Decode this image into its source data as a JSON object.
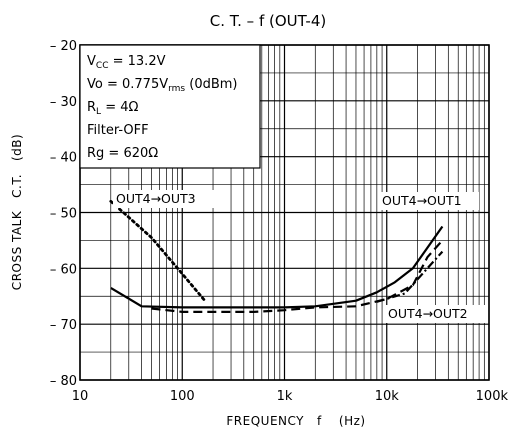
{
  "chart_data": {
    "type": "line",
    "title": "C. T. – f (OUT-4)",
    "xlabel": "FREQUENCY   f    (Hz)",
    "ylabel": "CROSS TALK   C.T.   (dB)",
    "xscale": "log",
    "xlim": [
      10,
      100000
    ],
    "ylim": [
      -80,
      -20
    ],
    "xticks": [
      {
        "value": 10,
        "label": "10"
      },
      {
        "value": 100,
        "label": "100"
      },
      {
        "value": 1000,
        "label": "1k"
      },
      {
        "value": 10000,
        "label": "10k"
      },
      {
        "value": 100000,
        "label": "100k"
      }
    ],
    "yticks": [
      {
        "value": -20,
        "label": "– 20"
      },
      {
        "value": -30,
        "label": "– 30"
      },
      {
        "value": -40,
        "label": "– 40"
      },
      {
        "value": -50,
        "label": "– 50"
      },
      {
        "value": -60,
        "label": "– 60"
      },
      {
        "value": -70,
        "label": "– 70"
      },
      {
        "value": -80,
        "label": "– 80"
      }
    ],
    "grid": true,
    "conditions": [
      {
        "main": "V",
        "sub": "CC",
        "rest": " = 13.2V"
      },
      {
        "main": "Vo = 0.775V",
        "sub": "rms",
        "rest": "  (0dBm)"
      },
      {
        "main": "R",
        "sub": "L",
        "rest": " = 4Ω"
      },
      {
        "main": "Filter-OFF",
        "sub": "",
        "rest": ""
      },
      {
        "main": "Rg = 620Ω",
        "sub": "",
        "rest": ""
      }
    ],
    "series": [
      {
        "name": "OUT4→OUT1",
        "style": "solid",
        "color": "#000000",
        "x": [
          20,
          40,
          100,
          200,
          500,
          1000,
          2000,
          5000,
          8000,
          12000,
          18000,
          35000
        ],
        "y": [
          -63.5,
          -66.8,
          -67.0,
          -67.0,
          -67.0,
          -67.0,
          -66.8,
          -65.8,
          -64.3,
          -62.5,
          -60.0,
          -52.5
        ]
      },
      {
        "name": "OUT4→OUT2",
        "style": "dashed",
        "color": "#000000",
        "x": [
          50,
          100,
          200,
          500,
          1000,
          2000,
          5000,
          10000,
          18000,
          25000,
          35000
        ],
        "y": [
          -67.2,
          -67.8,
          -67.8,
          -67.8,
          -67.5,
          -67.0,
          -66.8,
          -65.5,
          -63.0,
          -58.0,
          -55.0
        ]
      },
      {
        "name": "OUT4→OUT3",
        "style": "dotted",
        "color": "#000000",
        "x": [
          20,
          50,
          100,
          170
        ],
        "y": [
          -48,
          -54.5,
          -61,
          -66
        ]
      }
    ],
    "extra_series": [
      {
        "name": "",
        "style": "dashdot",
        "color": "#000000",
        "x": [
          8000,
          15000,
          25000,
          35000
        ],
        "y": [
          -66.0,
          -64.5,
          -60.0,
          -57.0
        ]
      }
    ]
  }
}
